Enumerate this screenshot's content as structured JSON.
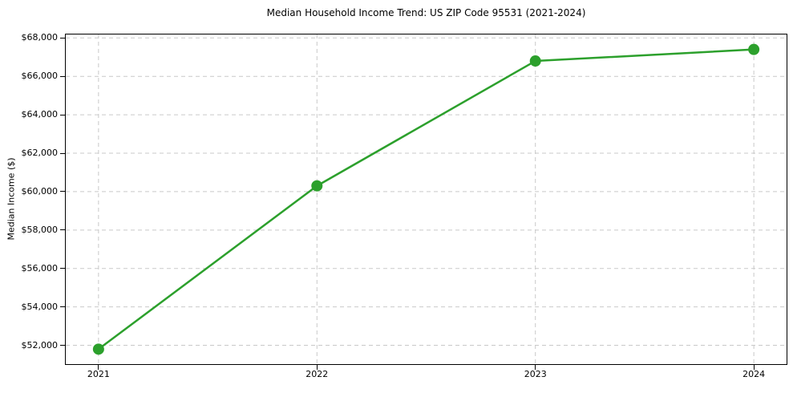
{
  "title": "Median Household Income Trend: US ZIP Code 95531 (2021-2024)",
  "y_axis_label": "Median Income ($)",
  "colors": {
    "line": "#2ca02c",
    "marker": "#2ca02c",
    "grid": "#c9c9c9",
    "spine": "#000000",
    "text": "#000000",
    "background": "#ffffff"
  },
  "chart_data": {
    "type": "line",
    "title": "Median Household Income Trend: US ZIP Code 95531 (2021-2024)",
    "xlabel": "",
    "ylabel": "Median Income ($)",
    "x": [
      2021,
      2022,
      2023,
      2024
    ],
    "values": [
      51800,
      60300,
      66800,
      67400
    ],
    "xlim": [
      2020.85,
      2024.15
    ],
    "ylim": [
      51020,
      68180
    ],
    "xticks": {
      "values": [
        2021,
        2022,
        2023,
        2024
      ],
      "labels": [
        "2021",
        "2022",
        "2023",
        "2024"
      ]
    },
    "yticks": {
      "values": [
        52000,
        54000,
        56000,
        58000,
        60000,
        62000,
        64000,
        66000,
        68000
      ],
      "labels": [
        "$52,000",
        "$54,000",
        "$56,000",
        "$58,000",
        "$60,000",
        "$62,000",
        "$64,000",
        "$66,000",
        "$68,000"
      ]
    },
    "grid": true,
    "grid_style": "dashed",
    "legend": false,
    "line_width": 2.5,
    "marker": "circle",
    "marker_radius": 7
  }
}
